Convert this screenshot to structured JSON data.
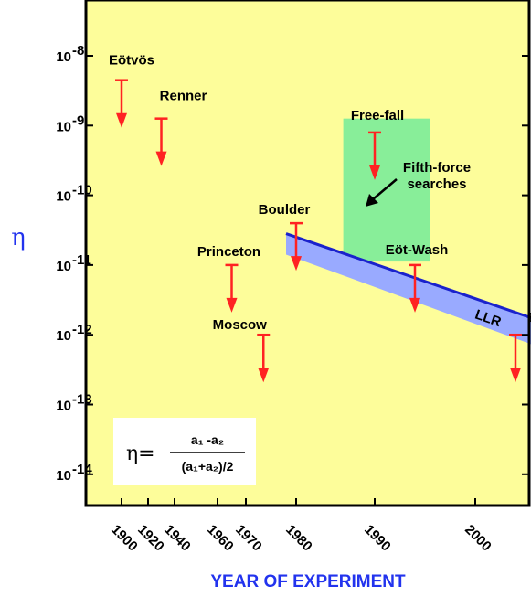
{
  "chart_data": {
    "type": "scatter",
    "xlabel": "YEAR OF EXPERIMENT",
    "ylabel": "η",
    "y_scale": "log",
    "ylim_exp": [
      -14.7,
      -7.3
    ],
    "y_ticks": [
      {
        "exp": -8,
        "label": "10",
        "sup": "-8"
      },
      {
        "exp": -9,
        "label": "10",
        "sup": "-9"
      },
      {
        "exp": -10,
        "label": "10",
        "sup": "-10"
      },
      {
        "exp": -11,
        "label": "10",
        "sup": "-11"
      },
      {
        "exp": -12,
        "label": "10",
        "sup": "-12"
      },
      {
        "exp": -13,
        "label": "10",
        "sup": "-13"
      },
      {
        "exp": -14,
        "label": "10",
        "sup": "-14"
      }
    ],
    "x_tick_labels": [
      "1900",
      "1920",
      "1940",
      "1960",
      "1970",
      "1980",
      "1990",
      "2000"
    ],
    "limits": [
      {
        "name": "Eötvös",
        "tick_index": 0,
        "upper_limit_exp": -8.35
      },
      {
        "name": "Renner",
        "tick_index": 1.5,
        "upper_limit_exp": -8.9
      },
      {
        "name": "Princeton",
        "tick_index": 3.5,
        "upper_limit_exp": -11.0
      },
      {
        "name": "Moscow",
        "tick_index": 4.35,
        "upper_limit_exp": -12.0
      },
      {
        "name": "Boulder",
        "tick_index": 5.0,
        "upper_limit_exp": -10.4
      },
      {
        "name": "Free-fall",
        "tick_index": 6.0,
        "upper_limit_exp": -9.1
      },
      {
        "name": "Eöt-Wash",
        "tick_index": 6.4,
        "upper_limit_exp": -11.0
      },
      {
        "name": "Eöt-Wash",
        "tick_index": 7.4,
        "upper_limit_exp": -12.0
      },
      {
        "name": "",
        "tick_index": 8.0,
        "upper_limit_exp": -12.35
      },
      {
        "name": "",
        "tick_index": 8.5,
        "upper_limit_exp": -12.5
      }
    ],
    "fifth_force_band": {
      "label": "Fifth-force searches",
      "tick_index_range": [
        5.6,
        6.55
      ],
      "exp_range": [
        -10.95,
        -8.9
      ]
    },
    "llr_band": {
      "label": "LLR",
      "tick_index_range": [
        4.8,
        9.2
      ],
      "upper_exp": [
        -10.55,
        -12.57
      ],
      "lower_exp": [
        -10.85,
        -13.0
      ]
    },
    "formula": {
      "lhs": "η=",
      "numerator": "a₁ -a₂",
      "denominator": "(a₁+a₂)/2"
    },
    "colors": {
      "background": "#fdfd9a",
      "arrow": "#ff2222",
      "llr": "#99aaff",
      "fifth_force": "#88ee99",
      "axis_label": "#2233ee"
    }
  }
}
